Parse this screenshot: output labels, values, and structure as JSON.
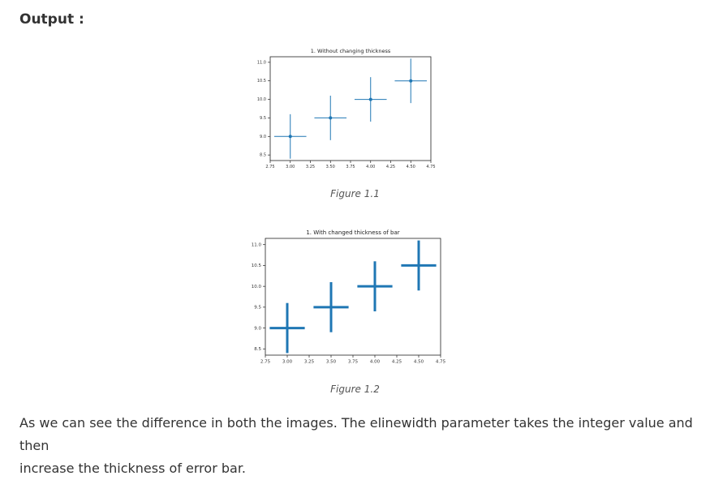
{
  "heading": "Output :",
  "paragraph": {
    "line1": "As we can see the difference in both the images. The elinewidth parameter takes the integer value and then",
    "line2": "increase the thickness of error bar."
  },
  "figures": [
    {
      "caption": "Figure 1.1"
    },
    {
      "caption": "Figure 1.2"
    }
  ],
  "chart_data": [
    {
      "type": "scatter",
      "title": "1. Without changing thickness",
      "x": [
        3.0,
        3.5,
        4.0,
        4.5
      ],
      "y": [
        9.0,
        9.5,
        10.0,
        10.5
      ],
      "xerr": 0.2,
      "yerr": 0.6,
      "elinewidth": 1,
      "marker": "o",
      "xlim": [
        2.75,
        4.75
      ],
      "ylim": [
        8.35,
        11.15
      ],
      "xticks": [
        "2.75",
        "3.00",
        "3.25",
        "3.50",
        "3.75",
        "4.00",
        "4.25",
        "4.50",
        "4.75"
      ],
      "yticks": [
        "8.5",
        "9.0",
        "9.5",
        "10.0",
        "10.5",
        "11.0"
      ],
      "xlabel": "",
      "ylabel": "",
      "color": "#1f77b4",
      "grid": false
    },
    {
      "type": "scatter",
      "title": "1. With changed thickness of bar",
      "x": [
        3.0,
        3.5,
        4.0,
        4.5
      ],
      "y": [
        9.0,
        9.5,
        10.0,
        10.5
      ],
      "xerr": 0.2,
      "yerr": 0.6,
      "elinewidth": 3,
      "marker": "none",
      "xlim": [
        2.75,
        4.75
      ],
      "ylim": [
        8.35,
        11.15
      ],
      "xticks": [
        "2.75",
        "3.00",
        "3.25",
        "3.50",
        "3.75",
        "4.00",
        "4.25",
        "4.50",
        "4.75"
      ],
      "yticks": [
        "8.5",
        "9.0",
        "9.5",
        "10.0",
        "10.5",
        "11.0"
      ],
      "xlabel": "",
      "ylabel": "",
      "color": "#1f77b4",
      "grid": false
    }
  ]
}
